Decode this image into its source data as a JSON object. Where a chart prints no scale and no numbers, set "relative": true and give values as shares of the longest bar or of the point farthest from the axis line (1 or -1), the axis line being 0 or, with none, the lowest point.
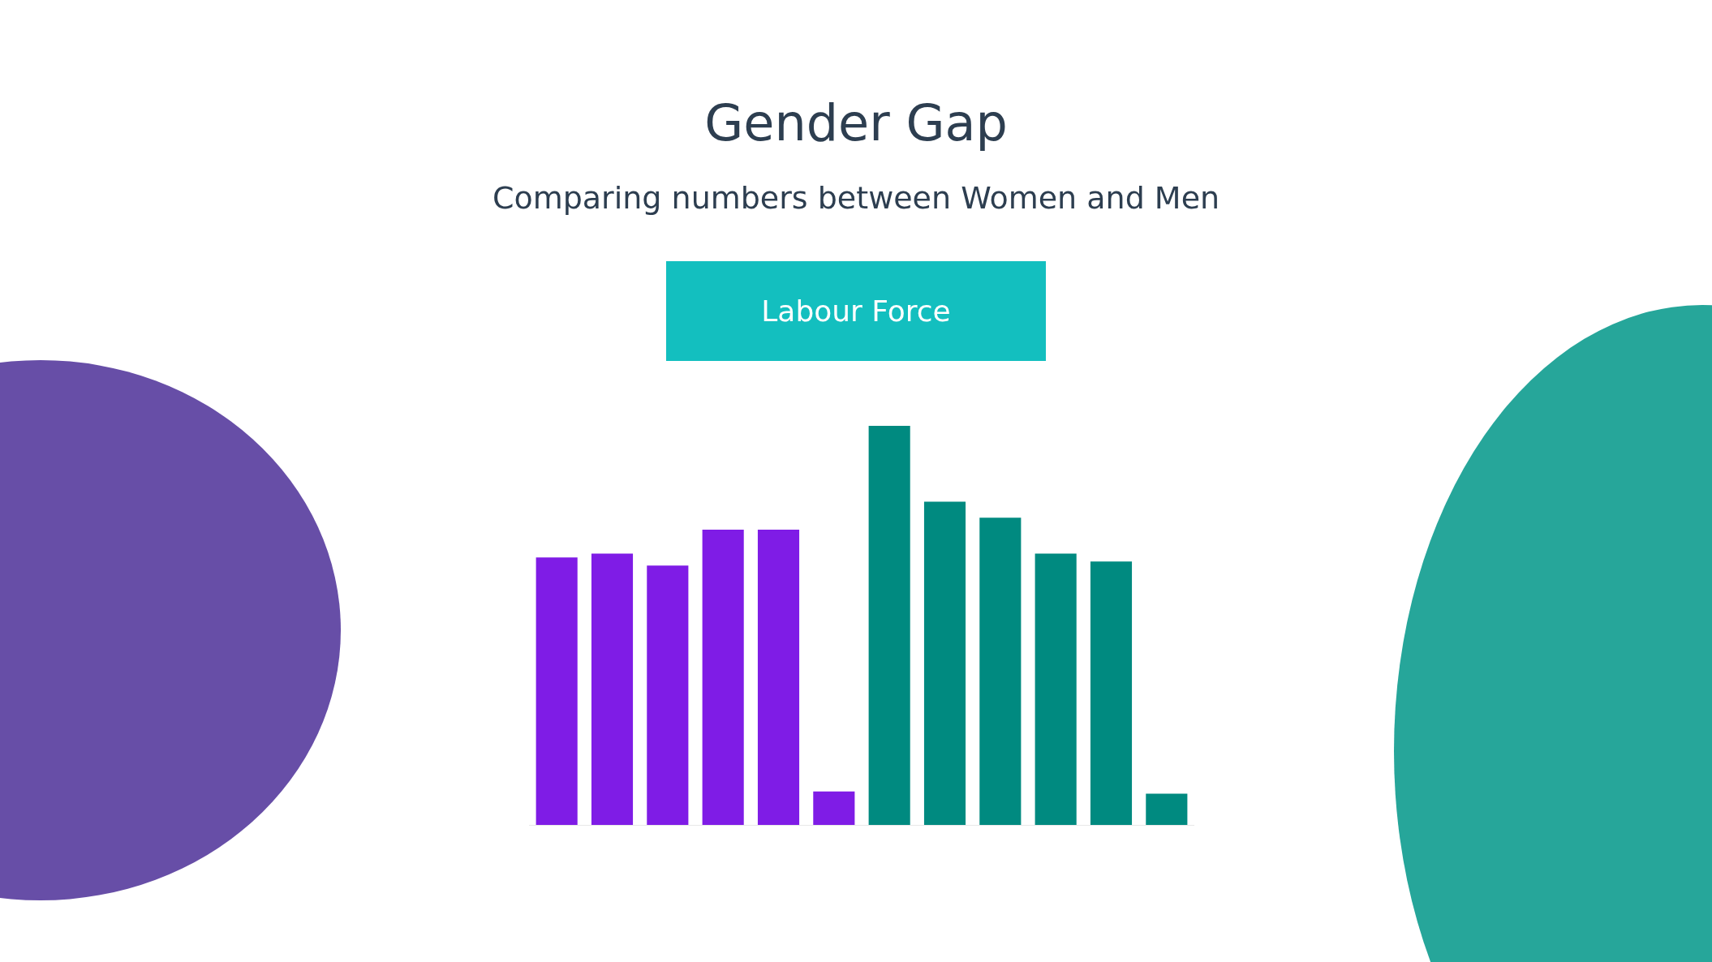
{
  "chart_data": {
    "type": "bar",
    "title": "Gender Gap",
    "subtitle": "Comparing numbers between Women and Men",
    "annotations": [
      "Labour Force"
    ],
    "categories": [
      null,
      null,
      null,
      null,
      null,
      null,
      null,
      null,
      null,
      null,
      null,
      null
    ],
    "values": [
      0.67,
      0.68,
      0.65,
      0.74,
      0.74,
      0.084,
      1,
      0.81,
      0.77,
      0.68,
      0.66,
      0.078
    ],
    "colors": [
      "#7f1ce6",
      "#7f1ce6",
      "#7f1ce6",
      "#7f1ce6",
      "#7f1ce6",
      "#7f1ce6",
      "#008a80",
      "#008a80",
      "#008a80",
      "#008a80",
      "#008a80",
      "#008a80"
    ],
    "relative": true,
    "tick_labels": false
  }
}
